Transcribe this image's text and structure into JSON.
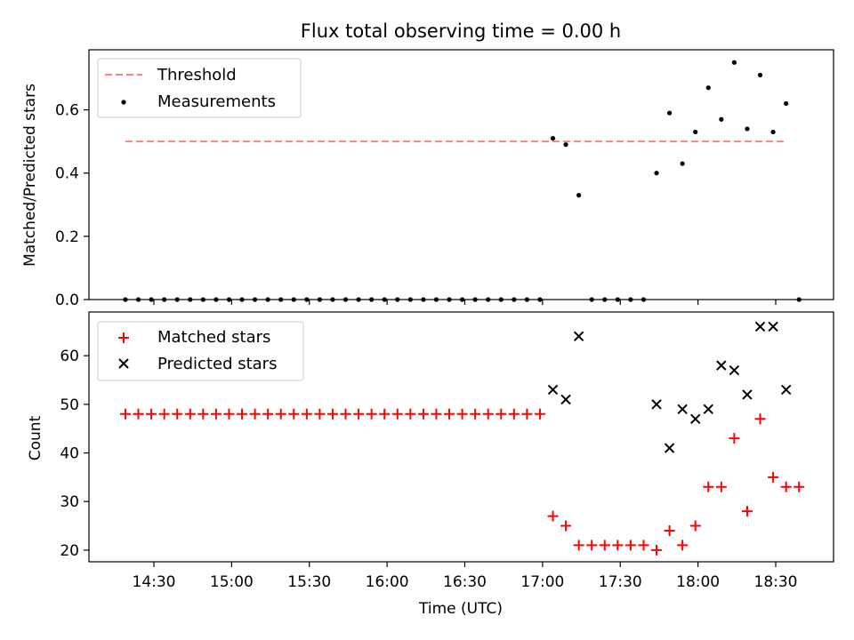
{
  "chart_data": [
    {
      "type": "scatter",
      "title": "Flux total observing time = 0.00 h",
      "ylabel": "Matched/Predicted stars",
      "ylim": [
        0,
        0.79
      ],
      "yticks": [
        "0.0",
        "0.2",
        "0.4",
        "0.6"
      ],
      "ytick_values": [
        0,
        0.2,
        0.4,
        0.6
      ],
      "grid": false,
      "legend_position": "top-left",
      "threshold": {
        "name": "Threshold",
        "value": 0.5,
        "x_start": "14:19",
        "x_end": "18:34",
        "color": "#ff7f7f"
      },
      "series": [
        {
          "name": "Measurements",
          "color": "#000000",
          "marker": "dot",
          "x": [
            "14:19",
            "14:24",
            "14:29",
            "14:34",
            "14:39",
            "14:44",
            "14:49",
            "14:54",
            "14:59",
            "15:04",
            "15:09",
            "15:14",
            "15:19",
            "15:24",
            "15:29",
            "15:34",
            "15:39",
            "15:44",
            "15:49",
            "15:54",
            "15:59",
            "16:04",
            "16:09",
            "16:14",
            "16:19",
            "16:24",
            "16:29",
            "16:34",
            "16:39",
            "16:44",
            "16:49",
            "16:54",
            "16:59",
            "17:04",
            "17:09",
            "17:14",
            "17:19",
            "17:24",
            "17:29",
            "17:34",
            "17:39",
            "17:44",
            "17:49",
            "17:54",
            "17:59",
            "18:04",
            "18:09",
            "18:14",
            "18:19",
            "18:24",
            "18:29",
            "18:34",
            "18:39"
          ],
          "values": [
            0,
            0,
            0,
            0,
            0,
            0,
            0,
            0,
            0,
            0,
            0,
            0,
            0,
            0,
            0,
            0,
            0,
            0,
            0,
            0,
            0,
            0,
            0,
            0,
            0,
            0,
            0,
            0,
            0,
            0,
            0,
            0,
            0,
            0.51,
            0.49,
            0.33,
            0,
            0,
            0,
            0,
            0,
            0.4,
            0.59,
            0.43,
            0.53,
            0.67,
            0.57,
            0.75,
            0.54,
            0.71,
            0.53,
            0.62,
            0
          ]
        }
      ]
    },
    {
      "type": "scatter",
      "xlabel": "Time (UTC)",
      "ylabel": "Count",
      "ylim": [
        17.6,
        69
      ],
      "yticks": [
        "20",
        "30",
        "40",
        "50",
        "60"
      ],
      "ytick_values": [
        20,
        30,
        40,
        50,
        60
      ],
      "xticks": [
        "14:30",
        "15:00",
        "15:30",
        "16:00",
        "16:30",
        "17:00",
        "17:30",
        "18:00",
        "18:30"
      ],
      "grid": false,
      "legend_position": "top-left",
      "series": [
        {
          "name": "Matched stars",
          "color": "#ff0000",
          "marker": "plus",
          "x": [
            "14:19",
            "14:24",
            "14:29",
            "14:34",
            "14:39",
            "14:44",
            "14:49",
            "14:54",
            "14:59",
            "15:04",
            "15:09",
            "15:14",
            "15:19",
            "15:24",
            "15:29",
            "15:34",
            "15:39",
            "15:44",
            "15:49",
            "15:54",
            "15:59",
            "16:04",
            "16:09",
            "16:14",
            "16:19",
            "16:24",
            "16:29",
            "16:34",
            "16:39",
            "16:44",
            "16:49",
            "16:54",
            "16:59",
            "17:04",
            "17:09",
            "17:14",
            "17:19",
            "17:24",
            "17:29",
            "17:34",
            "17:39",
            "17:44",
            "17:49",
            "17:54",
            "17:59",
            "18:04",
            "18:09",
            "18:14",
            "18:19",
            "18:24",
            "18:29",
            "18:34",
            "18:39"
          ],
          "values": [
            48,
            48,
            48,
            48,
            48,
            48,
            48,
            48,
            48,
            48,
            48,
            48,
            48,
            48,
            48,
            48,
            48,
            48,
            48,
            48,
            48,
            48,
            48,
            48,
            48,
            48,
            48,
            48,
            48,
            48,
            48,
            48,
            48,
            27,
            25,
            21,
            21,
            21,
            21,
            21,
            21,
            20,
            24,
            21,
            25,
            33,
            33,
            43,
            28,
            47,
            35,
            33,
            33
          ]
        },
        {
          "name": "Predicted stars",
          "color": "#000000",
          "marker": "x",
          "x": [
            "17:04",
            "17:09",
            "17:14",
            "17:44",
            "17:49",
            "17:54",
            "17:59",
            "18:04",
            "18:09",
            "18:14",
            "18:19",
            "18:24",
            "18:29",
            "18:34"
          ],
          "values": [
            53,
            51,
            64,
            50,
            41,
            49,
            47,
            49,
            58,
            57,
            52,
            66,
            66,
            53
          ]
        }
      ]
    }
  ]
}
